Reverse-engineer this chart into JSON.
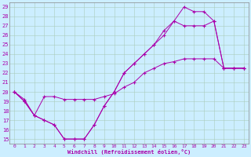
{
  "xlabel": "Windchill (Refroidissement éolien,°C)",
  "xlim": [
    -0.5,
    23.5
  ],
  "ylim": [
    14.5,
    29.5
  ],
  "xticks": [
    0,
    1,
    2,
    3,
    4,
    5,
    6,
    7,
    8,
    9,
    10,
    11,
    12,
    13,
    14,
    15,
    16,
    17,
    18,
    19,
    20,
    21,
    22,
    23
  ],
  "yticks": [
    15,
    16,
    17,
    18,
    19,
    20,
    21,
    22,
    23,
    24,
    25,
    26,
    27,
    28,
    29
  ],
  "line_color": "#aa00aa",
  "background_color": "#cceeff",
  "grid_color": "#aaccbb",
  "line1": [
    [
      0,
      20
    ],
    [
      1,
      19
    ],
    [
      2,
      17.5
    ],
    [
      3,
      17
    ],
    [
      4,
      16.5
    ],
    [
      5,
      15
    ],
    [
      6,
      15
    ],
    [
      7,
      15
    ],
    [
      8,
      16.5
    ],
    [
      9,
      18.5
    ],
    [
      10,
      20
    ],
    [
      11,
      22
    ],
    [
      12,
      23
    ],
    [
      13,
      24
    ],
    [
      14,
      25
    ],
    [
      15,
      26
    ],
    [
      16,
      27.5
    ],
    [
      17,
      29
    ],
    [
      18,
      28.5
    ],
    [
      19,
      28.5
    ],
    [
      20,
      27.5
    ],
    [
      21,
      22.5
    ],
    [
      22,
      22.5
    ],
    [
      23,
      22.5
    ]
  ],
  "line2": [
    [
      0,
      20
    ],
    [
      1,
      19.2
    ],
    [
      2,
      17.5
    ],
    [
      3,
      19.5
    ],
    [
      4,
      19.5
    ],
    [
      5,
      19.2
    ],
    [
      6,
      19.2
    ],
    [
      7,
      19.2
    ],
    [
      8,
      19.2
    ],
    [
      9,
      19.5
    ],
    [
      10,
      19.8
    ],
    [
      11,
      20.5
    ],
    [
      12,
      21
    ],
    [
      13,
      22
    ],
    [
      14,
      22.5
    ],
    [
      15,
      23
    ],
    [
      16,
      23.2
    ],
    [
      17,
      23.5
    ],
    [
      18,
      23.5
    ],
    [
      19,
      23.5
    ],
    [
      20,
      23.5
    ],
    [
      21,
      22.5
    ],
    [
      22,
      22.5
    ],
    [
      23,
      22.5
    ]
  ],
  "line3": [
    [
      0,
      20
    ],
    [
      1,
      19
    ],
    [
      2,
      17.5
    ],
    [
      3,
      17
    ],
    [
      4,
      16.5
    ],
    [
      5,
      15
    ],
    [
      6,
      15
    ],
    [
      7,
      15
    ],
    [
      8,
      16.5
    ],
    [
      9,
      18.5
    ],
    [
      10,
      20
    ],
    [
      11,
      22
    ],
    [
      12,
      23
    ],
    [
      13,
      24
    ],
    [
      14,
      25
    ],
    [
      15,
      26.5
    ],
    [
      16,
      27.5
    ],
    [
      17,
      27
    ],
    [
      18,
      27
    ],
    [
      19,
      27
    ],
    [
      20,
      27.5
    ],
    [
      21,
      22.5
    ],
    [
      22,
      22.5
    ],
    [
      23,
      22.5
    ]
  ]
}
